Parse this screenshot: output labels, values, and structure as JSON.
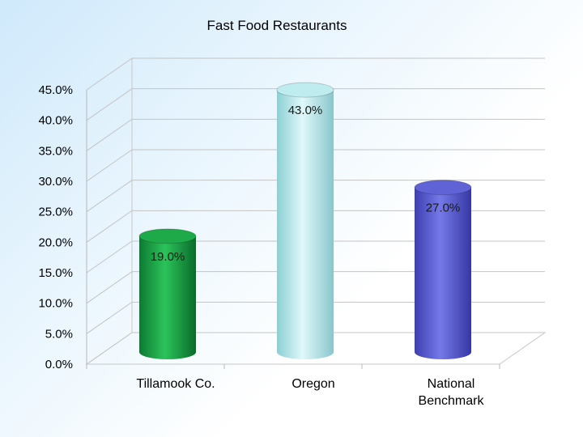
{
  "chart_data": {
    "type": "bar",
    "title": "Fast Food Restaurants",
    "categories": [
      "Tillamook Co.",
      "Oregon",
      "National Benchmark"
    ],
    "category_lines": [
      [
        "Tillamook Co."
      ],
      [
        "Oregon"
      ],
      [
        "National",
        "Benchmark"
      ]
    ],
    "values": [
      19.0,
      43.0,
      27.0
    ],
    "value_labels": [
      "19.0%",
      "43.0%",
      "27.0%"
    ],
    "bar_colors": [
      "#1faa4a",
      "#bfecef",
      "#5f63d6"
    ],
    "ylim": [
      0,
      45
    ],
    "y_ticks": [
      0,
      5,
      10,
      15,
      20,
      25,
      30,
      35,
      40,
      45
    ],
    "y_tick_labels": [
      "0.0%",
      "5.0%",
      "10.0%",
      "15.0%",
      "20.0%",
      "25.0%",
      "30.0%",
      "35.0%",
      "40.0%",
      "45.0%"
    ],
    "xlabel": "",
    "ylabel": "",
    "grid": true,
    "legend": "none"
  }
}
